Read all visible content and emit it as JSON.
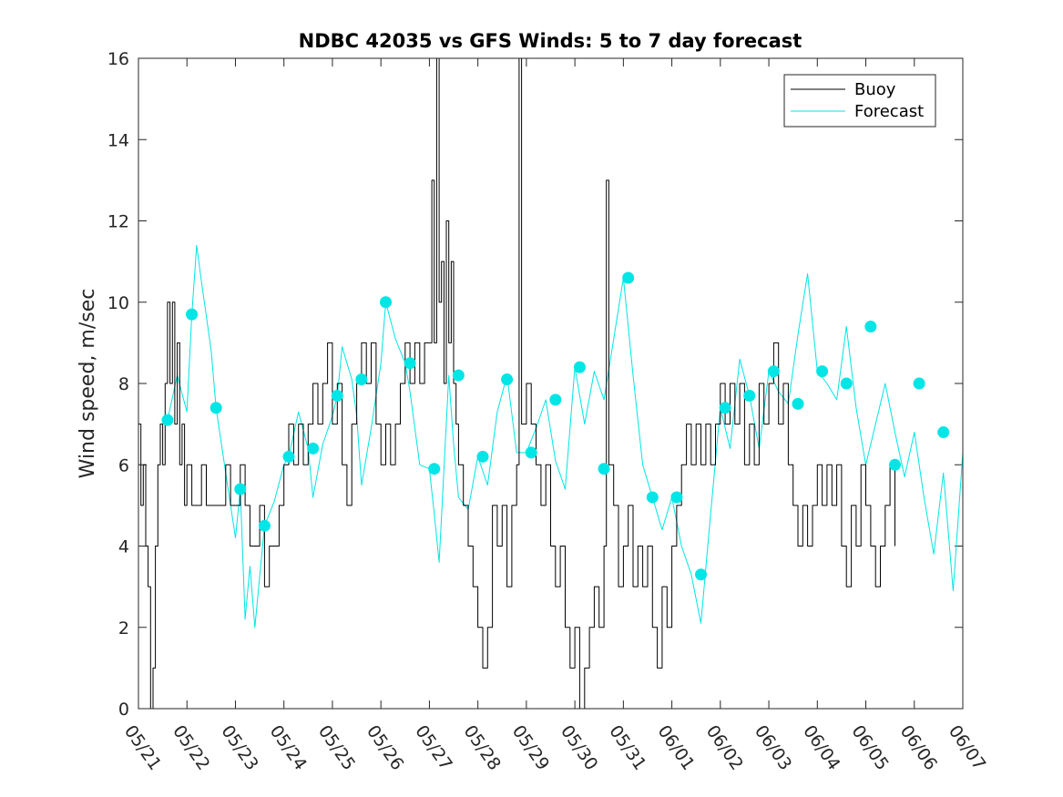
{
  "chart_data": {
    "type": "line",
    "title": "NDBC 42035 vs GFS Winds: 5 to 7 day forecast",
    "ylabel": "Wind speed, m/sec",
    "xlabel": "",
    "ylim": [
      0,
      16
    ],
    "yticks": [
      0,
      2,
      4,
      6,
      8,
      10,
      12,
      14,
      16
    ],
    "xlim": [
      0,
      17
    ],
    "xtick_labels": [
      "05/21",
      "05/22",
      "05/23",
      "05/24",
      "05/25",
      "05/26",
      "05/27",
      "05/28",
      "05/29",
      "05/30",
      "05/31",
      "06/01",
      "06/02",
      "06/03",
      "06/04",
      "06/05",
      "06/06",
      "06/07"
    ],
    "legend_position": "top-right",
    "legend": [
      {
        "label": "Buoy",
        "color": "#000000"
      },
      {
        "label": "Forecast",
        "color": "#00e5e5"
      }
    ],
    "colors": {
      "buoy": "#000000",
      "forecast": "#00e5e5"
    },
    "series": [
      {
        "name": "Buoy",
        "color": "#000000",
        "points": [
          [
            0,
            7
          ],
          [
            0.05,
            5
          ],
          [
            0.1,
            6
          ],
          [
            0.15,
            4
          ],
          [
            0.2,
            3
          ],
          [
            0.25,
            0
          ],
          [
            0.3,
            1
          ],
          [
            0.35,
            4
          ],
          [
            0.4,
            6
          ],
          [
            0.45,
            7
          ],
          [
            0.5,
            6
          ],
          [
            0.55,
            8
          ],
          [
            0.6,
            10
          ],
          [
            0.65,
            8
          ],
          [
            0.7,
            10
          ],
          [
            0.75,
            7
          ],
          [
            0.8,
            9
          ],
          [
            0.85,
            6
          ],
          [
            0.9,
            7
          ],
          [
            0.95,
            5
          ],
          [
            1.0,
            6
          ],
          [
            1.1,
            5
          ],
          [
            1.2,
            5
          ],
          [
            1.3,
            6
          ],
          [
            1.4,
            5
          ],
          [
            1.5,
            5
          ],
          [
            1.6,
            5
          ],
          [
            1.7,
            5
          ],
          [
            1.8,
            6
          ],
          [
            1.9,
            5
          ],
          [
            2.0,
            5
          ],
          [
            2.1,
            6
          ],
          [
            2.2,
            5
          ],
          [
            2.3,
            4
          ],
          [
            2.4,
            4
          ],
          [
            2.5,
            5
          ],
          [
            2.6,
            3
          ],
          [
            2.7,
            4
          ],
          [
            2.8,
            4
          ],
          [
            2.9,
            5
          ],
          [
            3.0,
            6
          ],
          [
            3.1,
            7
          ],
          [
            3.2,
            6
          ],
          [
            3.3,
            7
          ],
          [
            3.4,
            6
          ],
          [
            3.5,
            7
          ],
          [
            3.6,
            8
          ],
          [
            3.7,
            7
          ],
          [
            3.8,
            8
          ],
          [
            3.9,
            9
          ],
          [
            4.0,
            7
          ],
          [
            4.1,
            8
          ],
          [
            4.2,
            6
          ],
          [
            4.3,
            5
          ],
          [
            4.4,
            7
          ],
          [
            4.5,
            8
          ],
          [
            4.6,
            9
          ],
          [
            4.7,
            8
          ],
          [
            4.8,
            9
          ],
          [
            4.9,
            7
          ],
          [
            5.0,
            6
          ],
          [
            5.1,
            7
          ],
          [
            5.2,
            6
          ],
          [
            5.3,
            7
          ],
          [
            5.4,
            8
          ],
          [
            5.5,
            9
          ],
          [
            5.6,
            8
          ],
          [
            5.7,
            9
          ],
          [
            5.8,
            8
          ],
          [
            5.9,
            9
          ],
          [
            6.0,
            9
          ],
          [
            6.05,
            13
          ],
          [
            6.1,
            9
          ],
          [
            6.15,
            16
          ],
          [
            6.2,
            10
          ],
          [
            6.25,
            11
          ],
          [
            6.3,
            8
          ],
          [
            6.35,
            12
          ],
          [
            6.4,
            9
          ],
          [
            6.45,
            11
          ],
          [
            6.5,
            8
          ],
          [
            6.55,
            7
          ],
          [
            6.6,
            6
          ],
          [
            6.7,
            5
          ],
          [
            6.8,
            4
          ],
          [
            6.9,
            3
          ],
          [
            7.0,
            2
          ],
          [
            7.1,
            1
          ],
          [
            7.2,
            2
          ],
          [
            7.3,
            5
          ],
          [
            7.4,
            4
          ],
          [
            7.5,
            5
          ],
          [
            7.6,
            3
          ],
          [
            7.7,
            5
          ],
          [
            7.8,
            6
          ],
          [
            7.85,
            16
          ],
          [
            7.9,
            7
          ],
          [
            8.0,
            8
          ],
          [
            8.1,
            7
          ],
          [
            8.2,
            6
          ],
          [
            8.3,
            5
          ],
          [
            8.4,
            6
          ],
          [
            8.5,
            4
          ],
          [
            8.6,
            3
          ],
          [
            8.7,
            4
          ],
          [
            8.8,
            2
          ],
          [
            8.9,
            1
          ],
          [
            9.0,
            2
          ],
          [
            9.1,
            0
          ],
          [
            9.2,
            1
          ],
          [
            9.3,
            2
          ],
          [
            9.4,
            3
          ],
          [
            9.5,
            2
          ],
          [
            9.6,
            4
          ],
          [
            9.65,
            13
          ],
          [
            9.7,
            6
          ],
          [
            9.8,
            5
          ],
          [
            9.9,
            3
          ],
          [
            10.0,
            4
          ],
          [
            10.1,
            5
          ],
          [
            10.2,
            3
          ],
          [
            10.3,
            4
          ],
          [
            10.4,
            3
          ],
          [
            10.5,
            4
          ],
          [
            10.6,
            2
          ],
          [
            10.7,
            1
          ],
          [
            10.8,
            3
          ],
          [
            10.9,
            2
          ],
          [
            11.0,
            4
          ],
          [
            11.1,
            5
          ],
          [
            11.2,
            6
          ],
          [
            11.3,
            7
          ],
          [
            11.4,
            6
          ],
          [
            11.5,
            7
          ],
          [
            11.6,
            6
          ],
          [
            11.7,
            7
          ],
          [
            11.8,
            6
          ],
          [
            11.9,
            7
          ],
          [
            12.0,
            8
          ],
          [
            12.1,
            7
          ],
          [
            12.2,
            8
          ],
          [
            12.3,
            7
          ],
          [
            12.4,
            8
          ],
          [
            12.5,
            6
          ],
          [
            12.6,
            7
          ],
          [
            12.7,
            6
          ],
          [
            12.8,
            8
          ],
          [
            12.9,
            7
          ],
          [
            13.0,
            8
          ],
          [
            13.1,
            9
          ],
          [
            13.2,
            7
          ],
          [
            13.3,
            8
          ],
          [
            13.4,
            6
          ],
          [
            13.5,
            5
          ],
          [
            13.6,
            4
          ],
          [
            13.7,
            5
          ],
          [
            13.8,
            4
          ],
          [
            13.9,
            5
          ],
          [
            14.0,
            6
          ],
          [
            14.1,
            5
          ],
          [
            14.2,
            6
          ],
          [
            14.3,
            5
          ],
          [
            14.4,
            6
          ],
          [
            14.5,
            4
          ],
          [
            14.6,
            3
          ],
          [
            14.7,
            5
          ],
          [
            14.8,
            4
          ],
          [
            14.9,
            6
          ],
          [
            15.0,
            5
          ],
          [
            15.1,
            4
          ],
          [
            15.2,
            3
          ],
          [
            15.3,
            4
          ],
          [
            15.4,
            5
          ],
          [
            15.5,
            6
          ],
          [
            15.6,
            4
          ]
        ]
      },
      {
        "name": "Forecast",
        "color": "#00e5e5",
        "points": [
          [
            0.6,
            7.1
          ],
          [
            0.8,
            8.2
          ],
          [
            1.0,
            7.3
          ],
          [
            1.1,
            9.7
          ],
          [
            1.2,
            11.4
          ],
          [
            1.3,
            10.5
          ],
          [
            1.5,
            8.8
          ],
          [
            1.6,
            7.4
          ],
          [
            1.8,
            5.8
          ],
          [
            2.0,
            4.2
          ],
          [
            2.1,
            5.4
          ],
          [
            2.2,
            2.2
          ],
          [
            2.3,
            3.5
          ],
          [
            2.4,
            2.0
          ],
          [
            2.6,
            4.5
          ],
          [
            2.8,
            5.1
          ],
          [
            3.0,
            6.0
          ],
          [
            3.1,
            6.2
          ],
          [
            3.3,
            7.3
          ],
          [
            3.5,
            6.4
          ],
          [
            3.6,
            5.2
          ],
          [
            3.8,
            6.5
          ],
          [
            4.0,
            7.2
          ],
          [
            4.1,
            7.7
          ],
          [
            4.2,
            8.9
          ],
          [
            4.4,
            8.1
          ],
          [
            4.5,
            7.2
          ],
          [
            4.6,
            5.5
          ],
          [
            4.8,
            6.9
          ],
          [
            5.0,
            8.5
          ],
          [
            5.1,
            10.0
          ],
          [
            5.3,
            9.1
          ],
          [
            5.5,
            8.5
          ],
          [
            5.6,
            7.8
          ],
          [
            5.8,
            6.0
          ],
          [
            6.0,
            5.9
          ],
          [
            6.1,
            4.8
          ],
          [
            6.2,
            3.6
          ],
          [
            6.4,
            8.2
          ],
          [
            6.5,
            6.5
          ],
          [
            6.6,
            5.2
          ],
          [
            6.8,
            4.9
          ],
          [
            7.0,
            6.2
          ],
          [
            7.2,
            5.5
          ],
          [
            7.4,
            7.3
          ],
          [
            7.6,
            8.2
          ],
          [
            7.8,
            6.3
          ],
          [
            8.0,
            6.3
          ],
          [
            8.2,
            6.9
          ],
          [
            8.4,
            7.6
          ],
          [
            8.6,
            6.1
          ],
          [
            8.8,
            5.4
          ],
          [
            9.0,
            8.4
          ],
          [
            9.2,
            7.0
          ],
          [
            9.4,
            8.3
          ],
          [
            9.6,
            7.6
          ],
          [
            10.0,
            10.6
          ],
          [
            10.2,
            8.2
          ],
          [
            10.4,
            6.0
          ],
          [
            10.6,
            5.2
          ],
          [
            10.8,
            4.4
          ],
          [
            11.0,
            5.2
          ],
          [
            11.2,
            4.0
          ],
          [
            11.4,
            3.3
          ],
          [
            11.6,
            2.1
          ],
          [
            11.8,
            4.8
          ],
          [
            12.0,
            7.4
          ],
          [
            12.2,
            6.4
          ],
          [
            12.4,
            8.6
          ],
          [
            12.6,
            7.7
          ],
          [
            12.8,
            6.4
          ],
          [
            13.0,
            8.3
          ],
          [
            13.2,
            7.8
          ],
          [
            13.4,
            7.5
          ],
          [
            13.6,
            9.2
          ],
          [
            13.8,
            10.7
          ],
          [
            14.0,
            8.3
          ],
          [
            14.2,
            8.0
          ],
          [
            14.4,
            7.6
          ],
          [
            14.6,
            9.4
          ],
          [
            14.8,
            7.4
          ],
          [
            15.0,
            6.0
          ],
          [
            15.2,
            7.0
          ],
          [
            15.4,
            8.0
          ],
          [
            15.6,
            6.8
          ],
          [
            15.8,
            5.7
          ],
          [
            16.0,
            6.8
          ],
          [
            16.2,
            5.2
          ],
          [
            16.4,
            3.8
          ],
          [
            16.6,
            5.8
          ],
          [
            16.8,
            2.9
          ],
          [
            17.0,
            6.3
          ]
        ]
      }
    ],
    "forecast_markers": [
      [
        0.6,
        7.1
      ],
      [
        1.1,
        9.7
      ],
      [
        1.6,
        7.4
      ],
      [
        2.1,
        5.4
      ],
      [
        2.6,
        4.5
      ],
      [
        3.1,
        6.2
      ],
      [
        3.6,
        6.4
      ],
      [
        4.1,
        7.7
      ],
      [
        4.6,
        8.1
      ],
      [
        5.1,
        10.0
      ],
      [
        5.6,
        8.5
      ],
      [
        6.1,
        5.9
      ],
      [
        6.6,
        8.2
      ],
      [
        7.1,
        6.2
      ],
      [
        7.6,
        8.1
      ],
      [
        8.1,
        6.3
      ],
      [
        8.6,
        7.6
      ],
      [
        9.1,
        8.4
      ],
      [
        9.6,
        5.9
      ],
      [
        10.1,
        10.6
      ],
      [
        10.6,
        5.2
      ],
      [
        11.1,
        5.2
      ],
      [
        11.6,
        3.3
      ],
      [
        12.1,
        7.4
      ],
      [
        12.6,
        7.7
      ],
      [
        13.1,
        8.3
      ],
      [
        13.6,
        7.5
      ],
      [
        14.1,
        8.3
      ],
      [
        14.6,
        8.0
      ],
      [
        15.1,
        9.4
      ],
      [
        15.6,
        6.0
      ],
      [
        16.1,
        8.0
      ],
      [
        16.6,
        6.8
      ]
    ]
  }
}
